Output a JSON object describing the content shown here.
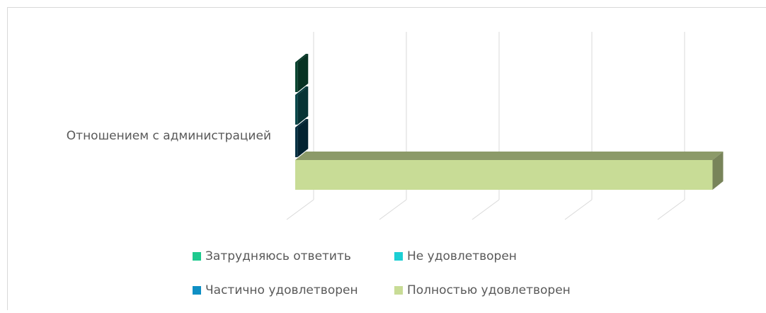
{
  "chart_data": {
    "type": "bar3d",
    "categories": [
      "Отношением с администрацией"
    ],
    "series": [
      {
        "name": "Затрудняюсь ответить",
        "color": "#1ec98e",
        "values": [
          0.5
        ]
      },
      {
        "name": "Не удовлетворен",
        "color": "#1ccfd4",
        "values": [
          0.5
        ]
      },
      {
        "name": "Частично удовлетворен",
        "color": "#0f8fc4",
        "values": [
          0.5
        ]
      },
      {
        "name": "Полностью удовлетворен",
        "color": "#c8dc96",
        "values": [
          90
        ]
      }
    ],
    "xlim": [
      0,
      80
    ],
    "xticks": [
      0,
      20,
      40,
      60,
      80
    ],
    "grid": true
  }
}
